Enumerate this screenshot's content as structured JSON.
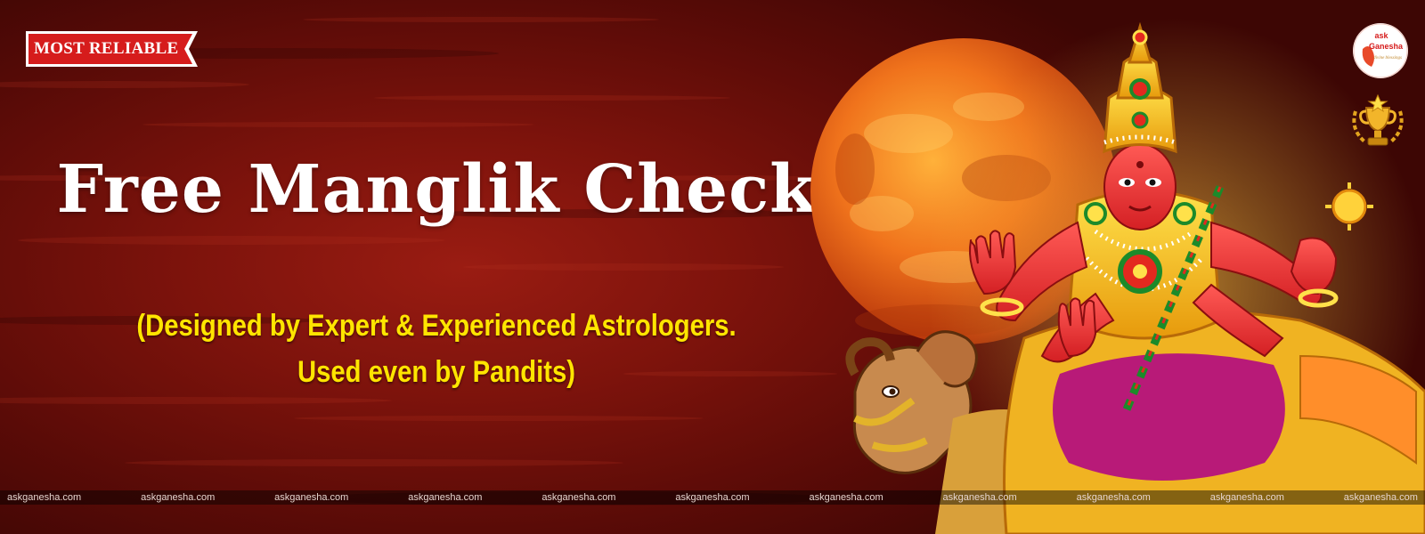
{
  "banner": {
    "badge_label": "MOST RELIABLE",
    "title": "Free Manglik Check",
    "subtitle_line1": "(Designed by Expert & Experienced Astrologers.",
    "subtitle_line2": "Used even by Pandits)",
    "logo": {
      "line1": "ask",
      "line2": "Ganesha",
      "tagline": "divine blessings"
    },
    "watermark": "askganesha.com"
  },
  "colors": {
    "background": "#7d130c",
    "badge": "#d81e1e",
    "title": "#ffffff",
    "subtitle": "#ffe500"
  },
  "icons": [
    "logo-icon",
    "trophy-icon",
    "mars-planet",
    "deity-illustration",
    "ram-illustration"
  ]
}
